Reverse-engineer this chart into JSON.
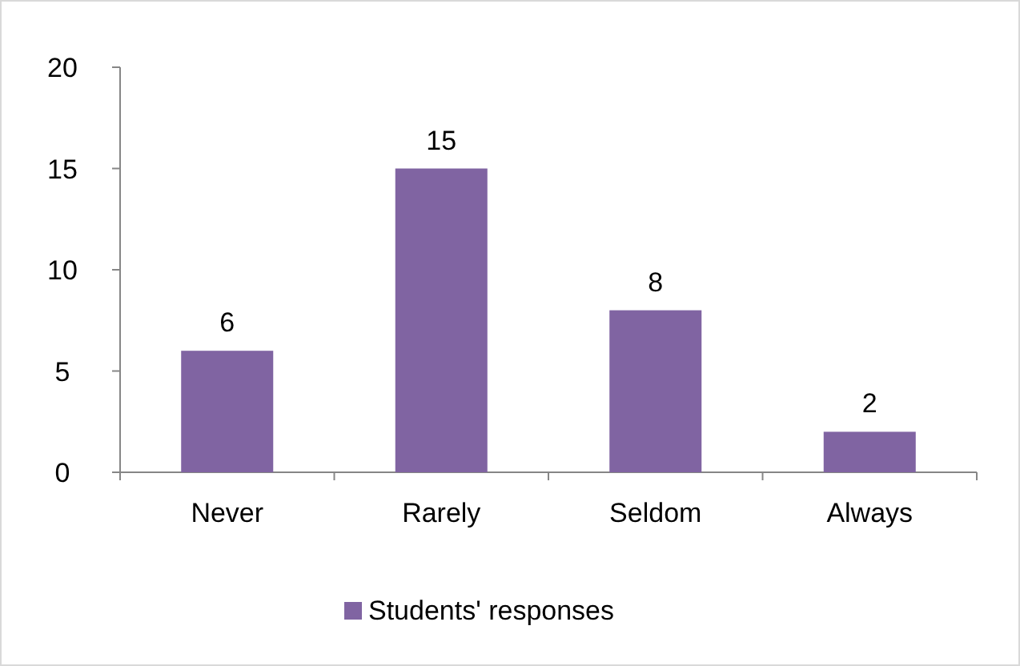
{
  "chart_data": {
    "type": "bar",
    "categories": [
      "Never",
      "Rarely",
      "Seldom",
      "Always"
    ],
    "series": [
      {
        "name": "Students' responses",
        "color": "#8064a2",
        "values": [
          6,
          15,
          8,
          2
        ]
      }
    ],
    "ylim": [
      0,
      20
    ],
    "yticks": [
      0,
      5,
      10,
      15,
      20
    ],
    "grid": false,
    "legend": "bottom",
    "data_labels": true
  }
}
